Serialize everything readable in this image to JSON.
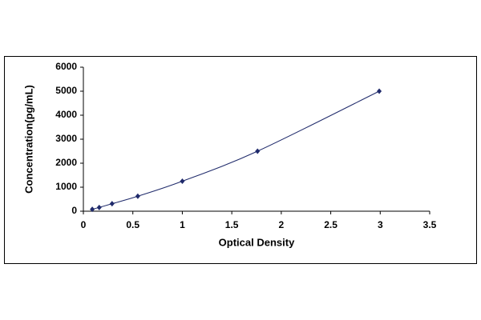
{
  "chart_data": {
    "type": "scatter",
    "line": true,
    "x_label": "Optical Density",
    "y_label": "Concentration(pg/mL)",
    "x": [
      0.09,
      0.16,
      0.29,
      0.55,
      1.0,
      1.76,
      2.99
    ],
    "values": [
      78,
      156,
      312,
      625,
      1250,
      2500,
      5000
    ],
    "color": "#1f2a6b",
    "xlim": [
      0,
      3.5
    ],
    "xticks": [
      0,
      0.5,
      1,
      1.5,
      2,
      2.5,
      3,
      3.5
    ],
    "ylim": [
      0,
      6000
    ],
    "yticks": [
      0,
      1000,
      2000,
      3000,
      4000,
      5000,
      6000
    ],
    "grid": false
  }
}
